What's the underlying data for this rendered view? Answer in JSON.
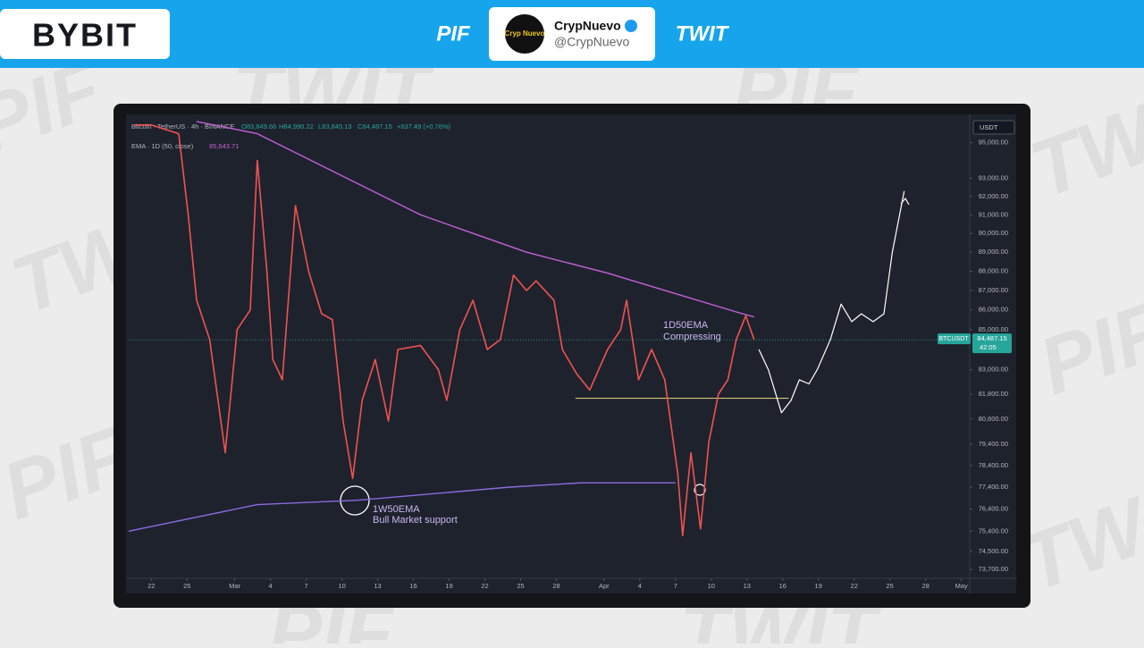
{
  "header": {
    "brand": "BYBIT",
    "left_tag": "PIF",
    "right_tag": "TWIT",
    "avatar_text": "Cryp Nuevo",
    "name": "CrypNuevo",
    "handle": "@CrypNuevo"
  },
  "watermark": [
    "PIF",
    "TWIT"
  ],
  "chart_data": {
    "type": "line",
    "symbol": "Bitcoin · TetherUS · 4h · BINANCE",
    "ohlc": [
      "O83,849.66",
      "H84,990.22",
      "L83,845.13",
      "C84,487.15",
      "+637.49 (+0.76%)"
    ],
    "indicator": {
      "label": "EMA · 1D (50, close)",
      "value": "85,643.71"
    },
    "currency": "USDT",
    "last_price": {
      "ticker": "BTCUSDT",
      "value": 84487.15,
      "label": "84,487.15",
      "countdown": "42:05",
      "color": "#26a69a"
    },
    "annotations": [
      {
        "lines": [
          "1D50EMA",
          "Compressing"
        ],
        "color": "#c9b8f0"
      },
      {
        "lines": [
          "1W50EMA",
          "Bull Market support"
        ],
        "color": "#c9b8f0"
      }
    ],
    "log_scale": true,
    "grid": false,
    "xlim": [
      -1.9,
      68.7
    ],
    "ylim": [
      73200,
      96500
    ],
    "xticks": [
      {
        "value": 0,
        "label": "22"
      },
      {
        "value": 3,
        "label": "25"
      },
      {
        "value": 7,
        "label": "Mar"
      },
      {
        "value": 10,
        "label": "4"
      },
      {
        "value": 13,
        "label": "7"
      },
      {
        "value": 16,
        "label": "10"
      },
      {
        "value": 19,
        "label": "13"
      },
      {
        "value": 22,
        "label": "16"
      },
      {
        "value": 25,
        "label": "19"
      },
      {
        "value": 28,
        "label": "22"
      },
      {
        "value": 31,
        "label": "25"
      },
      {
        "value": 34,
        "label": "28"
      },
      {
        "value": 38,
        "label": "Apr"
      },
      {
        "value": 41,
        "label": "4"
      },
      {
        "value": 44,
        "label": "7"
      },
      {
        "value": 47,
        "label": "10"
      },
      {
        "value": 50,
        "label": "13"
      },
      {
        "value": 53,
        "label": "16"
      },
      {
        "value": 56,
        "label": "19"
      },
      {
        "value": 59,
        "label": "22"
      },
      {
        "value": 62,
        "label": "25"
      },
      {
        "value": 65,
        "label": "28"
      },
      {
        "value": 68,
        "label": "May"
      }
    ],
    "yticks": [
      {
        "value": 95000,
        "label": "95,000.00"
      },
      {
        "value": 93000,
        "label": "93,000.00"
      },
      {
        "value": 92000,
        "label": "92,000.00"
      },
      {
        "value": 91000,
        "label": "91,000.00"
      },
      {
        "value": 90000,
        "label": "90,000.00"
      },
      {
        "value": 89000,
        "label": "89,000.00"
      },
      {
        "value": 88000,
        "label": "88,000.00"
      },
      {
        "value": 87000,
        "label": "87,000.00"
      },
      {
        "value": 86000,
        "label": "86,000.00"
      },
      {
        "value": 85000,
        "label": "85,000.00"
      },
      {
        "value": 83000,
        "label": "83,000.00"
      },
      {
        "value": 81800,
        "label": "81,800.00"
      },
      {
        "value": 80600,
        "label": "80,600.00"
      },
      {
        "value": 79400,
        "label": "79,400.00"
      },
      {
        "value": 78400,
        "label": "78,400.00"
      },
      {
        "value": 77400,
        "label": "77,400.00"
      },
      {
        "value": 76400,
        "label": "76,400.00"
      },
      {
        "value": 75400,
        "label": "75,400.00"
      },
      {
        "value": 74500,
        "label": "74,500.00"
      },
      {
        "value": 73700,
        "label": "73,700.00"
      }
    ],
    "series": [
      {
        "color": "#ef5350",
        "width": 1.6,
        "x": [
          -1.4,
          0,
          2.3,
          3.1,
          3.8,
          4.9,
          6.2,
          7.2,
          8.3,
          8.9,
          9.7,
          10.2,
          11,
          12.1,
          13.2,
          14.3,
          15.2,
          16.1,
          16.9,
          17.7,
          18.8,
          19.9,
          20.7,
          22.6,
          24.1,
          24.8,
          25.9,
          27,
          28.2,
          29.3,
          30.4,
          31.5,
          32.3,
          33.8,
          34.5,
          35.7,
          36.8,
          38.3,
          39.4,
          39.9,
          40.9,
          42,
          43.1,
          44.2,
          44.6,
          45.3,
          46.1,
          46.8,
          47.6,
          48.4,
          49.1,
          49.9,
          50.6
        ],
        "values": [
          96000,
          96000,
          95500,
          91000,
          86500,
          84500,
          79000,
          85000,
          86000,
          94000,
          88000,
          83500,
          82500,
          91500,
          88000,
          85800,
          85500,
          80500,
          77800,
          81500,
          83500,
          80500,
          84000,
          84200,
          83000,
          81500,
          85000,
          86500,
          84000,
          84500,
          87800,
          87000,
          87500,
          86500,
          84000,
          82800,
          82000,
          84000,
          85000,
          86500,
          82500,
          84000,
          82500,
          78000,
          75200,
          79000,
          75500,
          79500,
          81800,
          82500,
          84500,
          85700,
          84487.15
        ]
      },
      {
        "color": "#c261d6",
        "width": 1.4,
        "x": [
          3.8,
          8.9,
          22.6,
          31.5,
          38.3,
          44.2,
          49.1,
          50.6
        ],
        "values": [
          96200,
          95500,
          91000,
          89000,
          87900,
          86800,
          85900,
          85643.71
        ]
      },
      {
        "color": "#8c6be0",
        "width": 1.4,
        "x": [
          -1.9,
          8.9,
          17.3,
          30.1,
          36.1,
          44
        ],
        "values": [
          75400,
          76600,
          76800,
          77400,
          77600,
          77600
        ]
      },
      {
        "color": "#ffffff",
        "width": 1.2,
        "x": [
          51,
          51.8,
          52.9,
          53.7,
          54.4,
          55.2,
          55.9,
          57,
          57.9,
          58.8,
          59.6,
          60.6,
          61.5,
          62.2,
          63.2
        ],
        "values": [
          84000,
          83000,
          80900,
          81500,
          82500,
          82300,
          83000,
          84500,
          86300,
          85400,
          85800,
          85400,
          85800,
          89000,
          92300
        ]
      }
    ],
    "support": {
      "value": 81600,
      "x": [
        35.6,
        53.5
      ],
      "color": "#d8c37a"
    }
  }
}
